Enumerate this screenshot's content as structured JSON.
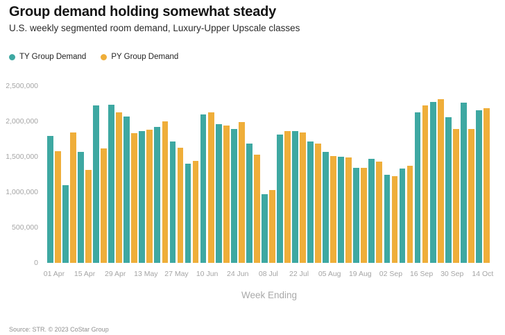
{
  "header": {
    "title": "Group demand holding somewhat steady",
    "subtitle": "U.S. weekly segmented room demand, Luxury-Upper Upscale classes"
  },
  "footer": {
    "source": "Source: STR. © 2023 CoStar Group"
  },
  "colors": {
    "ty": "#3EA8A2",
    "py": "#EFAE3A",
    "axis_text": "#a5a5a5",
    "title_text": "#141414"
  },
  "chart_data": {
    "type": "bar",
    "title": "Group demand holding somewhat steady",
    "subtitle": "U.S. weekly segmented room demand, Luxury-Upper Upscale classes",
    "xlabel": "Week Ending",
    "ylabel": "",
    "ylim": [
      0,
      2500000
    ],
    "ytick_values": [
      0,
      500000,
      1000000,
      1500000,
      2000000,
      2500000
    ],
    "ytick_labels": [
      "0",
      "500,000",
      "1,000,000",
      "1,500,000",
      "2,000,000",
      "2,500,000"
    ],
    "grid": false,
    "legend_position": "top-left",
    "categories": [
      "01 Apr",
      "08 Apr",
      "15 Apr",
      "22 Apr",
      "29 Apr",
      "06 May",
      "13 May",
      "20 May",
      "27 May",
      "03 Jun",
      "10 Jun",
      "17 Jun",
      "24 Jun",
      "01 Jul",
      "08 Jul",
      "15 Jul",
      "22 Jul",
      "29 Jul",
      "05 Aug",
      "12 Aug",
      "19 Aug",
      "26 Aug",
      "02 Sep",
      "09 Sep",
      "16 Sep",
      "23 Sep",
      "30 Sep",
      "07 Oct",
      "14 Oct"
    ],
    "xtick_shown_every": 2,
    "series": [
      {
        "name": "TY Group Demand",
        "color": "#3EA8A2",
        "values": [
          1790000,
          1100000,
          1565000,
          2225000,
          2235000,
          2065000,
          1860000,
          1925000,
          1715000,
          1400000,
          2095000,
          1965000,
          1895000,
          1690000,
          975000,
          1810000,
          1865000,
          1715000,
          1565000,
          1505000,
          1345000,
          1475000,
          1245000,
          1330000,
          2130000,
          2270000,
          2055000,
          2260000,
          2155000
        ]
      },
      {
        "name": "PY Group Demand",
        "color": "#EFAE3A",
        "values": [
          1580000,
          1845000,
          1310000,
          1620000,
          2125000,
          1830000,
          1880000,
          2000000,
          1625000,
          1440000,
          2130000,
          1940000,
          1995000,
          1525000,
          1025000,
          1860000,
          1845000,
          1685000,
          1510000,
          1490000,
          1345000,
          1430000,
          1225000,
          1375000,
          2225000,
          2310000,
          1890000,
          1895000,
          2190000
        ]
      }
    ]
  }
}
